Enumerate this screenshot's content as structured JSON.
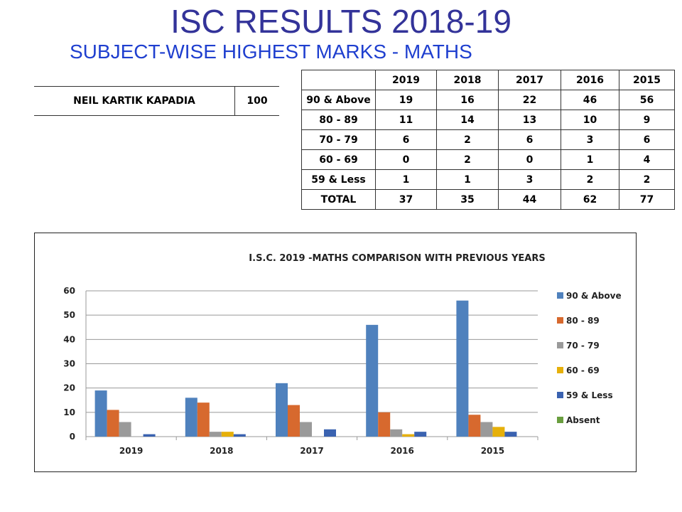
{
  "header": {
    "title": "ISC RESULTS 2018-19",
    "subtitle": "SUBJECT-WISE HIGHEST MARKS - MATHS"
  },
  "topper": {
    "name": "NEIL KARTIK KAPADIA",
    "marks": "100"
  },
  "table": {
    "columns": [
      "",
      "2019",
      "2018",
      "2017",
      "2016",
      "2015"
    ],
    "rows": [
      [
        "90 & Above",
        "19",
        "16",
        "22",
        "46",
        "56"
      ],
      [
        "80 - 89",
        "11",
        "14",
        "13",
        "10",
        "9"
      ],
      [
        "70 - 79",
        "6",
        "2",
        "6",
        "3",
        "6"
      ],
      [
        "60 - 69",
        "0",
        "2",
        "0",
        "1",
        "4"
      ],
      [
        "59 & Less",
        "1",
        "1",
        "3",
        "2",
        "2"
      ],
      [
        "TOTAL",
        "37",
        "35",
        "44",
        "62",
        "77"
      ]
    ]
  },
  "chart_data": {
    "type": "bar",
    "title": "I.S.C. 2019 -MATHS COMPARISON WITH PREVIOUS YEARS",
    "categories": [
      "2019",
      "2018",
      "2017",
      "2016",
      "2015"
    ],
    "series": [
      {
        "name": "90 & Above",
        "color": "#4f81bd",
        "values": [
          19,
          16,
          22,
          46,
          56
        ]
      },
      {
        "name": "80 - 89",
        "color": "#d7692e",
        "values": [
          11,
          14,
          13,
          10,
          9
        ]
      },
      {
        "name": "70 - 79",
        "color": "#9a9a9a",
        "values": [
          6,
          2,
          6,
          3,
          6
        ]
      },
      {
        "name": "60 - 69",
        "color": "#e6b00a",
        "values": [
          0,
          2,
          0,
          1,
          4
        ]
      },
      {
        "name": "59 & Less",
        "color": "#3a62b0",
        "values": [
          1,
          1,
          3,
          2,
          2
        ]
      },
      {
        "name": "Absent",
        "color": "#6a9e3f",
        "values": [
          0,
          0,
          0,
          0,
          0
        ]
      }
    ],
    "ylim": [
      0,
      60
    ],
    "yticks": [
      0,
      10,
      20,
      30,
      40,
      50,
      60
    ],
    "grid": true,
    "legend": "right",
    "xlabel": "",
    "ylabel": ""
  }
}
